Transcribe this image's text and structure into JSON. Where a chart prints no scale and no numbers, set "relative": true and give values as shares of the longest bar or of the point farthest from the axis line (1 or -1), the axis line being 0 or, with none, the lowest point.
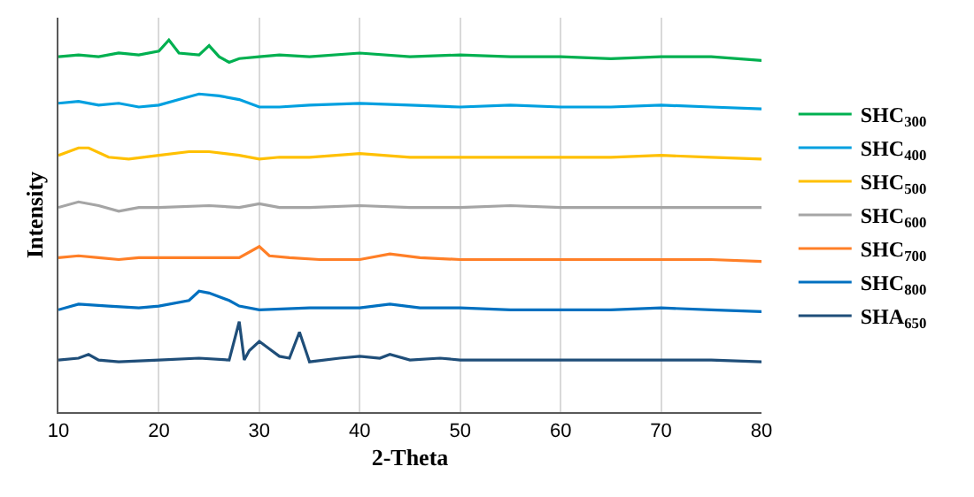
{
  "chart_data": {
    "type": "line",
    "relative": true,
    "xlabel": "2-Theta",
    "ylabel": "Intensity",
    "xlim": [
      10,
      80
    ],
    "xticks": [
      10,
      20,
      30,
      40,
      50,
      60,
      70,
      80
    ],
    "grid": "x",
    "legend": "right",
    "tick_labels": "x",
    "marker": "none",
    "line_style": "solid",
    "series": [
      {
        "name": "SHC$_{300}$",
        "color": "#00b050",
        "x": [
          10,
          12,
          14,
          16,
          18,
          20,
          21,
          22,
          24,
          25,
          26,
          27,
          28,
          30,
          32,
          35,
          40,
          45,
          50,
          55,
          60,
          65,
          70,
          75,
          80
        ],
        "values": [
          0.955,
          0.96,
          0.955,
          0.965,
          0.96,
          0.97,
          1.0,
          0.965,
          0.96,
          0.985,
          0.955,
          0.94,
          0.95,
          0.955,
          0.96,
          0.955,
          0.965,
          0.955,
          0.96,
          0.955,
          0.955,
          0.95,
          0.955,
          0.955,
          0.945
        ]
      },
      {
        "name": "SHC$_{400}$",
        "color": "#00a0e0",
        "x": [
          10,
          12,
          14,
          16,
          18,
          20,
          22,
          24,
          26,
          28,
          30,
          32,
          35,
          40,
          45,
          50,
          55,
          60,
          65,
          70,
          75,
          80
        ],
        "values": [
          0.83,
          0.835,
          0.825,
          0.83,
          0.82,
          0.825,
          0.84,
          0.855,
          0.85,
          0.84,
          0.82,
          0.82,
          0.825,
          0.83,
          0.825,
          0.82,
          0.825,
          0.82,
          0.82,
          0.825,
          0.82,
          0.815
        ]
      },
      {
        "name": "SHC$_{500}$",
        "color": "#ffc000",
        "x": [
          10,
          12,
          13,
          15,
          17,
          20,
          23,
          25,
          28,
          30,
          32,
          35,
          40,
          45,
          50,
          55,
          60,
          65,
          70,
          75,
          80
        ],
        "values": [
          0.69,
          0.71,
          0.71,
          0.685,
          0.68,
          0.69,
          0.7,
          0.7,
          0.69,
          0.68,
          0.685,
          0.685,
          0.695,
          0.685,
          0.685,
          0.685,
          0.685,
          0.685,
          0.69,
          0.685,
          0.68
        ]
      },
      {
        "name": "SHC$_{600}$",
        "color": "#a5a5a5",
        "x": [
          10,
          12,
          14,
          16,
          18,
          20,
          25,
          28,
          30,
          32,
          35,
          40,
          45,
          50,
          55,
          60,
          65,
          70,
          75,
          80
        ],
        "values": [
          0.55,
          0.565,
          0.555,
          0.54,
          0.55,
          0.55,
          0.555,
          0.55,
          0.56,
          0.55,
          0.55,
          0.555,
          0.55,
          0.55,
          0.555,
          0.55,
          0.55,
          0.55,
          0.55,
          0.55
        ]
      },
      {
        "name": "SHC$_{700}$",
        "color": "#ff7f27",
        "x": [
          10,
          12,
          14,
          16,
          18,
          20,
          25,
          28,
          30,
          31,
          33,
          36,
          40,
          43,
          46,
          50,
          55,
          60,
          65,
          70,
          75,
          80
        ],
        "values": [
          0.415,
          0.42,
          0.415,
          0.41,
          0.415,
          0.415,
          0.415,
          0.415,
          0.445,
          0.42,
          0.415,
          0.41,
          0.41,
          0.425,
          0.415,
          0.41,
          0.41,
          0.41,
          0.41,
          0.41,
          0.41,
          0.405
        ]
      },
      {
        "name": "SHC$_{800}$",
        "color": "#0070c0",
        "x": [
          10,
          12,
          15,
          18,
          20,
          23,
          24,
          25,
          27,
          28,
          30,
          35,
          40,
          43,
          46,
          50,
          55,
          60,
          65,
          70,
          75,
          80
        ],
        "values": [
          0.275,
          0.29,
          0.285,
          0.28,
          0.285,
          0.3,
          0.325,
          0.32,
          0.3,
          0.285,
          0.275,
          0.28,
          0.28,
          0.29,
          0.28,
          0.28,
          0.275,
          0.275,
          0.275,
          0.28,
          0.275,
          0.27
        ]
      },
      {
        "name": "SHA$_{650}$",
        "color": "#1f4e79",
        "x": [
          10,
          12,
          13,
          14,
          16,
          20,
          24,
          27,
          28,
          28.5,
          29,
          30,
          31,
          32,
          33,
          34,
          35,
          38,
          40,
          42,
          43,
          45,
          48,
          50,
          55,
          60,
          65,
          70,
          75,
          80
        ],
        "values": [
          0.14,
          0.145,
          0.155,
          0.14,
          0.135,
          0.14,
          0.145,
          0.14,
          0.243,
          0.14,
          0.165,
          0.19,
          0.17,
          0.15,
          0.145,
          0.215,
          0.135,
          0.145,
          0.15,
          0.145,
          0.155,
          0.14,
          0.145,
          0.14,
          0.14,
          0.14,
          0.14,
          0.14,
          0.14,
          0.135
        ]
      }
    ]
  }
}
